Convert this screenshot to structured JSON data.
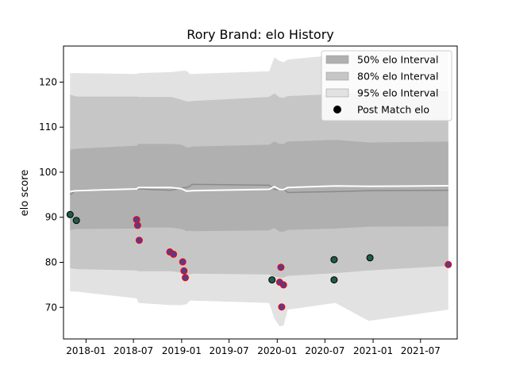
{
  "chart_data": {
    "type": "scatter",
    "title": "Rory Brand: elo History",
    "xlabel": "",
    "ylabel": "elo score",
    "xlim": [
      "2017-10-07",
      "2021-11-18"
    ],
    "ylim": [
      63,
      128
    ],
    "x_ticks": [
      "2018-01",
      "2018-07",
      "2019-01",
      "2019-07",
      "2020-01",
      "2020-07",
      "2021-01",
      "2021-07"
    ],
    "y_ticks": [
      70,
      80,
      90,
      100,
      110,
      120
    ],
    "grid": false,
    "legend_position": "top-right",
    "legend": [
      {
        "label": "50% elo Interval",
        "color": "#b0b0b0",
        "kind": "patch"
      },
      {
        "label": "80% elo Interval",
        "color": "#c6c6c6",
        "kind": "patch"
      },
      {
        "label": "95% elo Interval",
        "color": "#e2e2e2",
        "kind": "patch"
      },
      {
        "label": "Post Match elo",
        "color": "#000000",
        "kind": "marker"
      }
    ],
    "dates": [
      "2017-11-01",
      "2017-11-25",
      "2018-07-13",
      "2018-07-20",
      "2018-11-22",
      "2019-01-01",
      "2019-01-20",
      "2019-02-01",
      "2019-02-10",
      "2019-12-01",
      "2019-12-21",
      "2020-01-10",
      "2020-01-25",
      "2020-02-10",
      "2020-08-10",
      "2020-12-15",
      "2021-10-15"
    ],
    "mean_line": [
      95,
      96,
      96.3,
      96.3,
      96.0,
      96.5,
      96.6,
      96.9,
      97.3,
      97.1,
      96.2,
      96.1,
      96.3,
      95.5,
      95.7,
      95.9,
      96.0
    ],
    "series": [
      {
        "name": "95% elo Interval",
        "color": "#e2e2e2",
        "upper": [
          122,
          122,
          121.8,
          122,
          122.2,
          122.5,
          122.5,
          121.8,
          121.8,
          122.4,
          125.5,
          124.7,
          124.4,
          125,
          126,
          126.5,
          127
        ],
        "lower": [
          73.5,
          73.5,
          72,
          71,
          70.5,
          70.5,
          70.7,
          71.5,
          71.5,
          71,
          67.5,
          65.8,
          66,
          69.5,
          71,
          67,
          69.5
        ]
      },
      {
        "name": "80% elo Interval",
        "color": "#c6c6c6",
        "upper": [
          117.2,
          116.8,
          116.8,
          116.7,
          116.7,
          116.1,
          115.7,
          115.7,
          115.8,
          116.7,
          117.5,
          116.6,
          116.5,
          116.9,
          117.3,
          117.6,
          118
        ],
        "lower": [
          78.7,
          78.5,
          78.2,
          78,
          78,
          77.7,
          77.3,
          77.3,
          77.5,
          77.3,
          76.9,
          76.6,
          76.6,
          77,
          77.6,
          78.2,
          79.2
        ]
      },
      {
        "name": "50% elo Interval",
        "color": "#b0b0b0",
        "upper": [
          105,
          105.2,
          105.9,
          106.3,
          106.3,
          106.1,
          105.5,
          105.5,
          105.7,
          106.1,
          106.8,
          106.3,
          106.3,
          106.8,
          107.2,
          106.6,
          106.8
        ],
        "lower": [
          87.2,
          87.4,
          87.5,
          87.7,
          87.7,
          87.4,
          86.9,
          87.0,
          86.9,
          87.1,
          87.6,
          86.8,
          86.8,
          87.2,
          87.5,
          87.9,
          88.0
        ]
      },
      {
        "name": "Post Match elo",
        "points": [
          {
            "date": "2017-11-01",
            "elo": 90.6,
            "type": "match"
          },
          {
            "date": "2017-11-25",
            "elo": 89.3,
            "type": "match"
          },
          {
            "date": "2018-07-13",
            "elo": 89.5,
            "type": "outlier"
          },
          {
            "date": "2018-07-17",
            "elo": 88.2,
            "type": "outlier"
          },
          {
            "date": "2018-07-23",
            "elo": 84.9,
            "type": "outlier"
          },
          {
            "date": "2018-11-17",
            "elo": 82.3,
            "type": "outlier"
          },
          {
            "date": "2018-12-01",
            "elo": 81.8,
            "type": "outlier"
          },
          {
            "date": "2019-01-05",
            "elo": 80.1,
            "type": "outlier"
          },
          {
            "date": "2019-01-10",
            "elo": 78.1,
            "type": "outlier"
          },
          {
            "date": "2019-01-15",
            "elo": 76.6,
            "type": "outlier"
          },
          {
            "date": "2019-12-12",
            "elo": 76.1,
            "type": "match"
          },
          {
            "date": "2020-01-10",
            "elo": 75.6,
            "type": "outlier"
          },
          {
            "date": "2020-01-15",
            "elo": 78.9,
            "type": "outlier"
          },
          {
            "date": "2020-01-18",
            "elo": 70.1,
            "type": "outlier"
          },
          {
            "date": "2020-01-25",
            "elo": 75.0,
            "type": "outlier"
          },
          {
            "date": "2020-08-05",
            "elo": 80.6,
            "type": "match"
          },
          {
            "date": "2020-08-05",
            "elo": 76.1,
            "type": "match"
          },
          {
            "date": "2020-12-20",
            "elo": 81.0,
            "type": "match"
          },
          {
            "date": "2021-10-15",
            "elo": 79.5,
            "type": "outlier"
          }
        ]
      }
    ],
    "mean_line_color": "#8a8a8a",
    "center_line_color": "#ffffff",
    "match_marker_color": "#1f5c48",
    "outlier_marker_fill": "#5a3a8a",
    "outlier_marker_edge": "#ff0000"
  }
}
